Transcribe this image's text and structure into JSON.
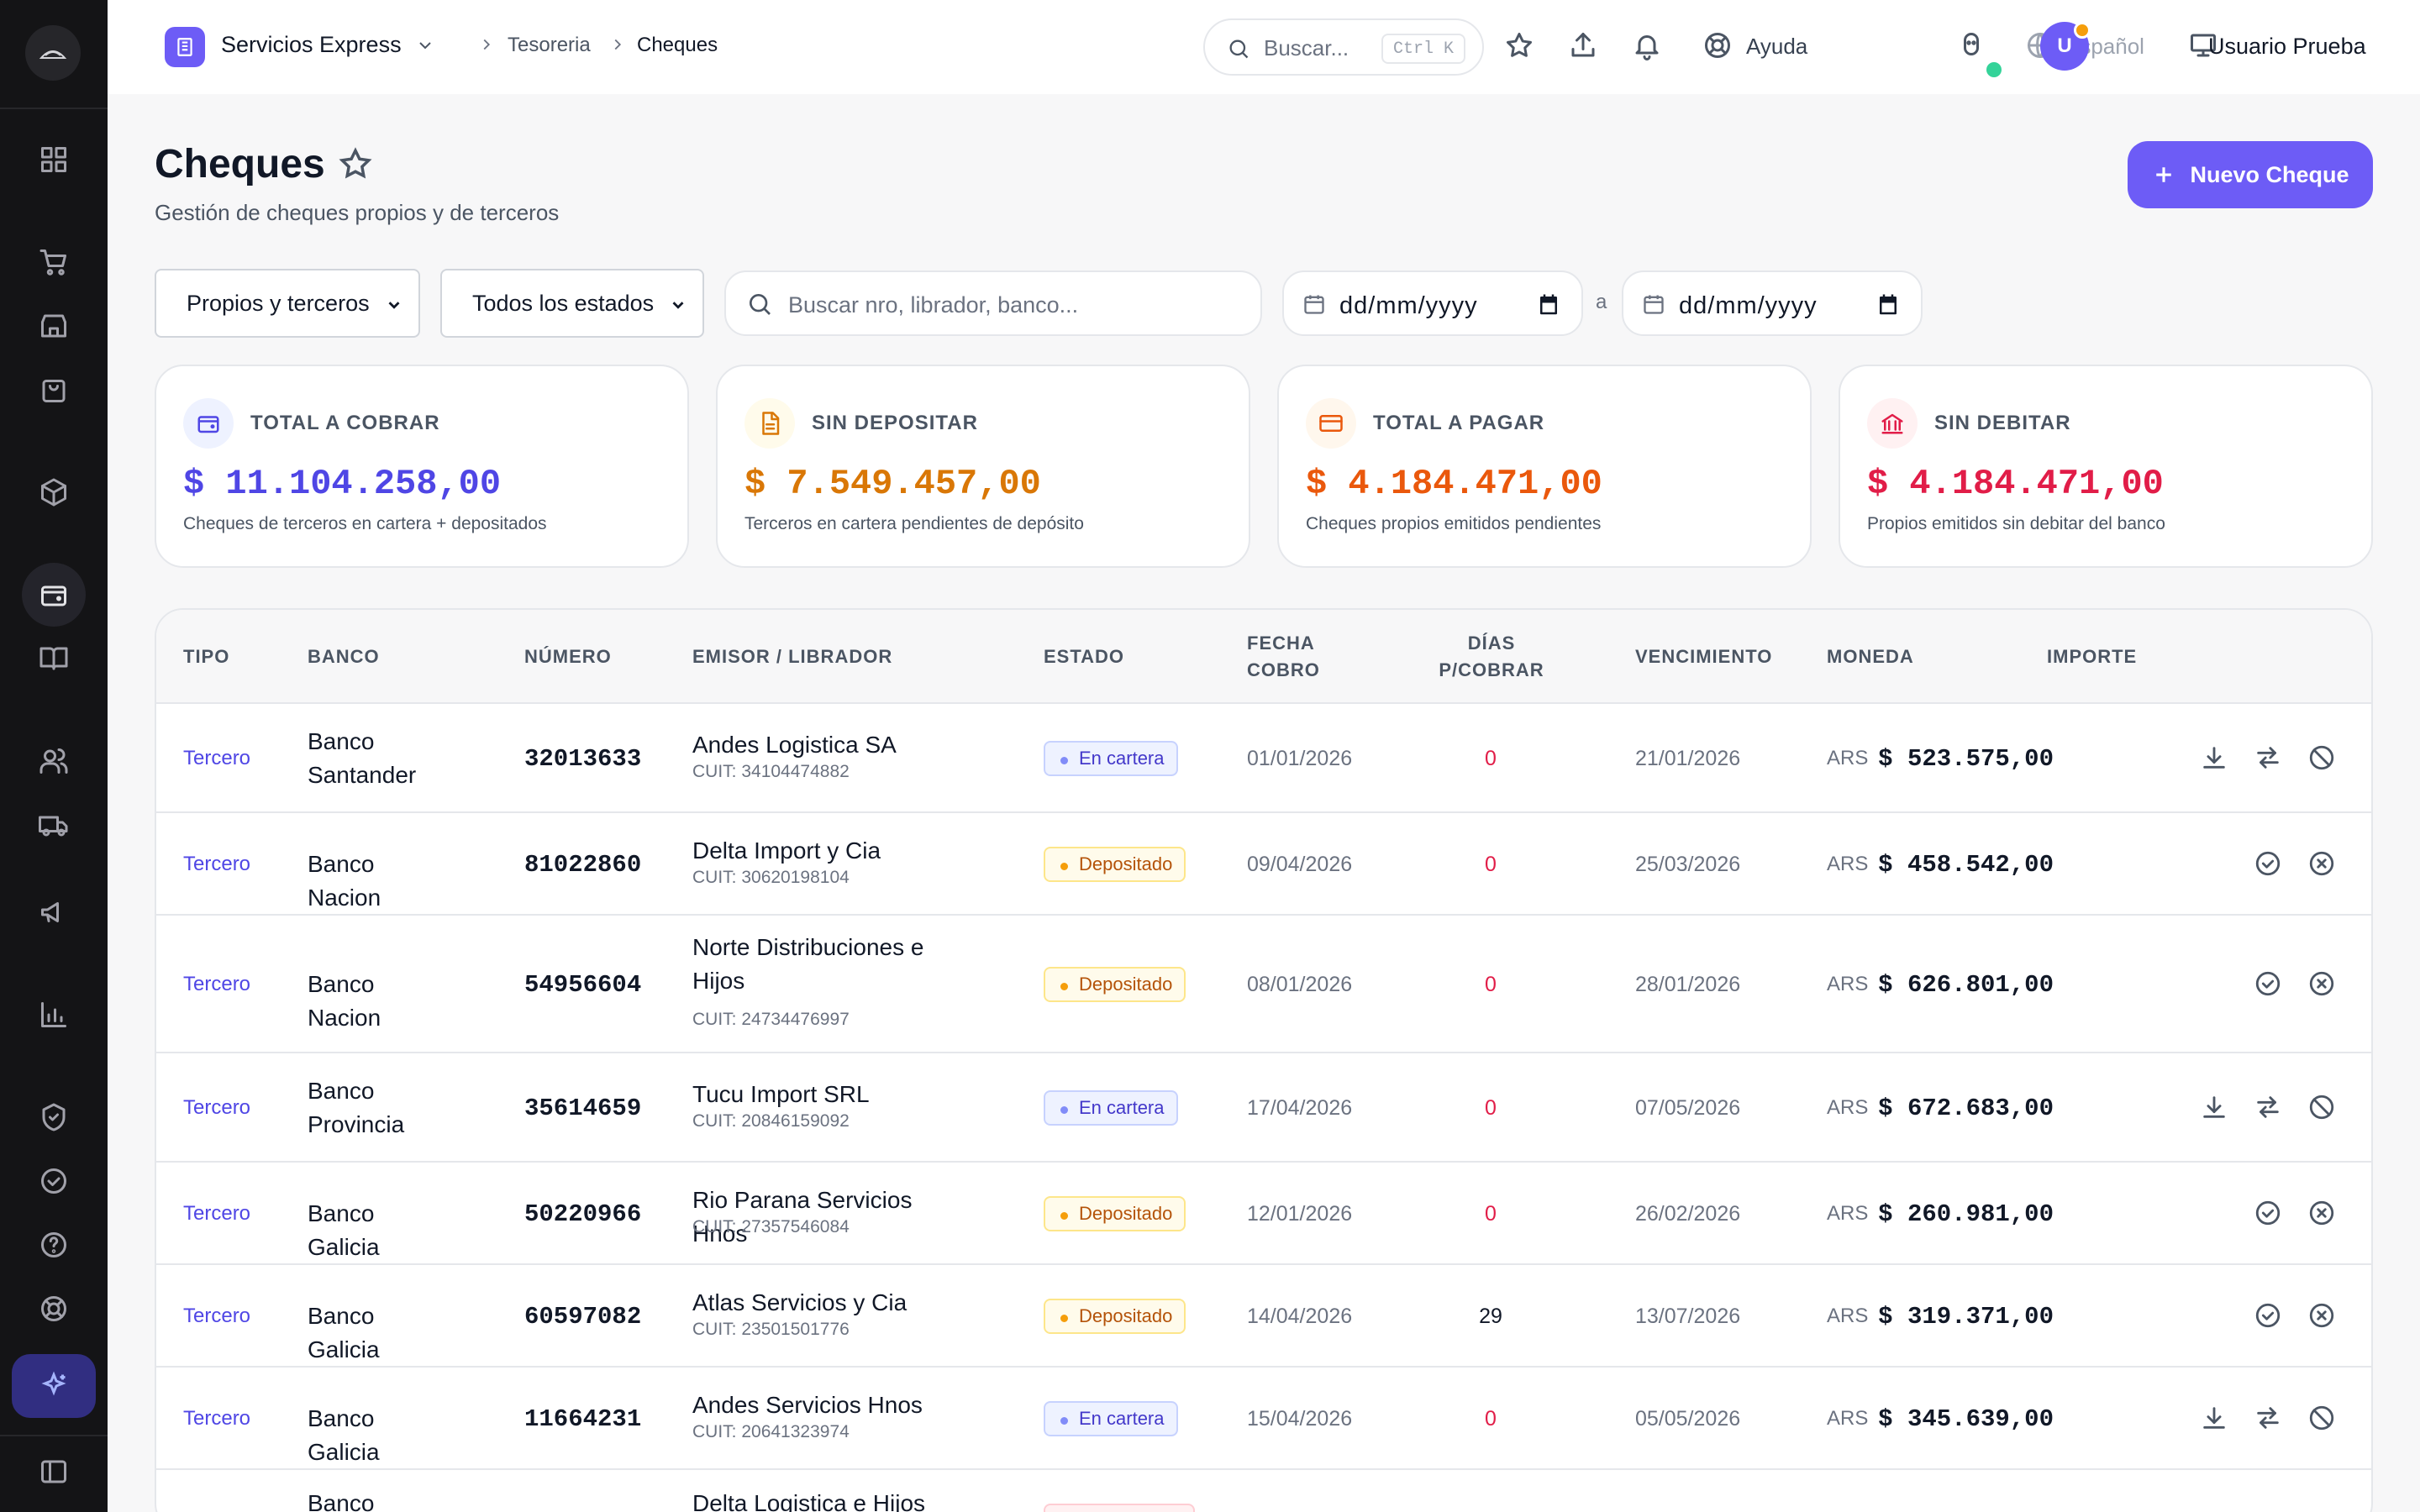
{
  "header": {
    "workspace": "Servicios Express",
    "breadcrumbs": [
      "Tesoreria",
      "Cheques"
    ],
    "search_placeholder": "Buscar...",
    "search_shortcut": "Ctrl K",
    "help_label": "Ayuda",
    "language": "Español",
    "user_initial": "U",
    "user_name": "Usuario Prueba"
  },
  "page": {
    "title": "Cheques",
    "subtitle": "Gestión de cheques propios y de terceros",
    "new_button": "Nuevo Cheque"
  },
  "filters": {
    "scope": "Propios y terceros",
    "status": "Todos los estados",
    "search_placeholder": "Buscar nro, librador, banco...",
    "date_from": "dd/mm/yyyy",
    "date_sep": "a",
    "date_to": "dd/mm/yyyy"
  },
  "cards": [
    {
      "label": "TOTAL A COBRAR",
      "amount": "$ 11.104.258,00",
      "desc": "Cheques de terceros en cartera + depositados",
      "icon": "wallet-icon",
      "color": "#4f46e5",
      "bg": "#eef2ff"
    },
    {
      "label": "SIN DEPOSITAR",
      "amount": "$ 7.549.457,00",
      "desc": "Terceros en cartera pendientes de depósito",
      "icon": "document-icon",
      "color": "#d97706",
      "bg": "#fffbeb"
    },
    {
      "label": "TOTAL A PAGAR",
      "amount": "$ 4.184.471,00",
      "desc": "Cheques propios emitidos pendientes",
      "icon": "credit-card-icon",
      "color": "#ea580c",
      "bg": "#fff7ed"
    },
    {
      "label": "SIN DEBITAR",
      "amount": "$ 4.184.471,00",
      "desc": "Propios emitidos sin debitar del banco",
      "icon": "bank-icon",
      "color": "#e11d48",
      "bg": "#fff1f2"
    }
  ],
  "table": {
    "columns": [
      "TIPO",
      "BANCO",
      "NÚMERO",
      "EMISOR / LIBRADOR",
      "ESTADO",
      "FECHA COBRO",
      "DÍAS P/COBRAR",
      "VENCIMIENTO",
      "MONEDA",
      "IMPORTE"
    ],
    "rows": [
      {
        "tipo": "Tercero",
        "banco": "Banco Santander",
        "numero": "32013633",
        "emisor": "Andes Logistica SA",
        "cuit": "CUIT: 34104474882",
        "estado": "En cartera",
        "fecha_cobro": "01/01/2026",
        "dias": "0",
        "vencimiento": "21/01/2026",
        "moneda": "ARS",
        "importe": "$ 523.575,00"
      },
      {
        "tipo": "Tercero",
        "banco": "Banco Nacion",
        "numero": "81022860",
        "emisor": "Delta Import y Cia",
        "cuit": "CUIT: 30620198104",
        "estado": "Depositado",
        "fecha_cobro": "09/04/2026",
        "dias": "0",
        "vencimiento": "25/03/2026",
        "moneda": "ARS",
        "importe": "$ 458.542,00"
      },
      {
        "tipo": "Tercero",
        "banco": "Banco Nacion",
        "numero": "54956604",
        "emisor": "Norte Distribuciones e Hijos",
        "cuit": "CUIT: 24734476997",
        "estado": "Depositado",
        "fecha_cobro": "08/01/2026",
        "dias": "0",
        "vencimiento": "28/01/2026",
        "moneda": "ARS",
        "importe": "$ 626.801,00"
      },
      {
        "tipo": "Tercero",
        "banco": "Banco Provincia",
        "numero": "35614659",
        "emisor": "Tucu Import SRL",
        "cuit": "CUIT: 20846159092",
        "estado": "En cartera",
        "fecha_cobro": "17/04/2026",
        "dias": "0",
        "vencimiento": "07/05/2026",
        "moneda": "ARS",
        "importe": "$ 672.683,00"
      },
      {
        "tipo": "Tercero",
        "banco": "Banco Galicia",
        "numero": "50220966",
        "emisor": "Rio Parana Servicios Hnos",
        "cuit": "CUIT: 27357546084",
        "estado": "Depositado",
        "fecha_cobro": "12/01/2026",
        "dias": "0",
        "vencimiento": "26/02/2026",
        "moneda": "ARS",
        "importe": "$ 260.981,00"
      },
      {
        "tipo": "Tercero",
        "banco": "Banco Galicia",
        "numero": "60597082",
        "emisor": "Atlas Servicios y Cia",
        "cuit": "CUIT: 23501501776",
        "estado": "Depositado",
        "fecha_cobro": "14/04/2026",
        "dias": "29",
        "vencimiento": "13/07/2026",
        "moneda": "ARS",
        "importe": "$ 319.371,00"
      },
      {
        "tipo": "Tercero",
        "banco": "Banco Galicia",
        "numero": "11664231",
        "emisor": "Andes Servicios Hnos",
        "cuit": "CUIT: 20641323974",
        "estado": "En cartera",
        "fecha_cobro": "15/04/2026",
        "dias": "0",
        "vencimiento": "05/05/2026",
        "moneda": "ARS",
        "importe": "$ 345.639,00"
      },
      {
        "tipo": "",
        "banco": "Banco",
        "numero": "",
        "emisor": "Delta Logistica e Hijos",
        "cuit": "",
        "estado": "",
        "fecha_cobro": "",
        "dias": "",
        "vencimiento": "",
        "moneda": "",
        "importe": ""
      }
    ]
  },
  "colors": {
    "accent": "#6d5cf6",
    "negative_days": "#e11d48"
  }
}
